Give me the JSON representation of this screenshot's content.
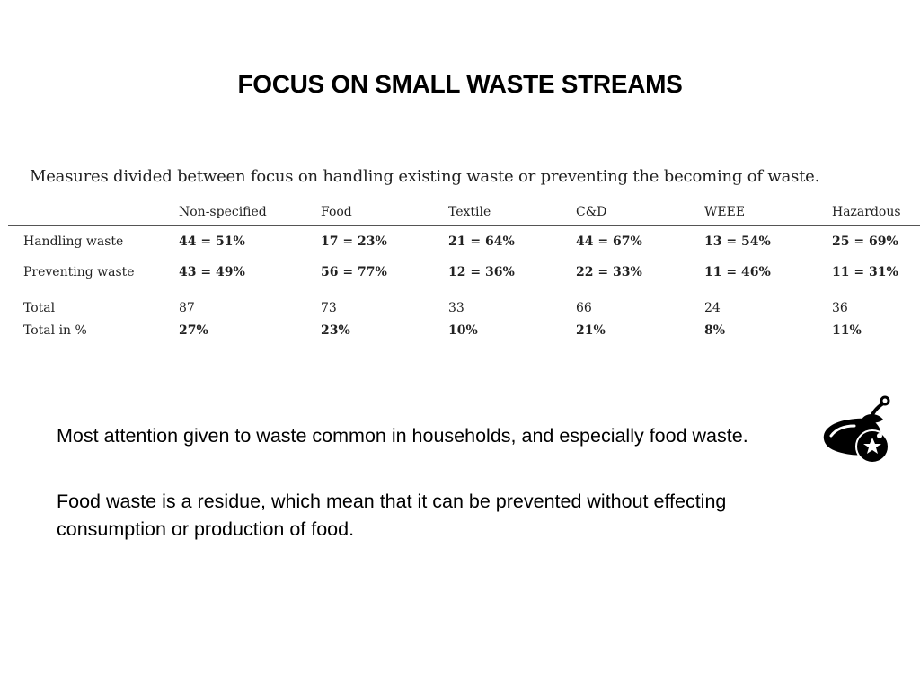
{
  "slide": {
    "title": "FOCUS ON SMALL WASTE STREAMS"
  },
  "table": {
    "caption": "Measures divided between focus on handling existing waste or preventing the becoming of waste.",
    "columns": [
      "",
      "Non-specified",
      "Food",
      "Textile",
      "C&D",
      "WEEE",
      "Hazardous"
    ],
    "rows": [
      {
        "label": "Handling waste",
        "cells": [
          "44 = 51%",
          "17 = 23%",
          "21 = 64%",
          "44 = 67%",
          "13 = 54%",
          "25 = 69%"
        ]
      },
      {
        "label": "Preventing waste",
        "cells": [
          "43 = 49%",
          "56 = 77%",
          "12 = 36%",
          "22 = 33%",
          "11 = 46%",
          "11 = 31%"
        ]
      },
      {
        "label": "Total",
        "cells": [
          "87",
          "73",
          "33",
          "66",
          "24",
          "36"
        ]
      },
      {
        "label": "Total in %",
        "cells": [
          "27%",
          "23%",
          "10%",
          "21%",
          "8%",
          "11%"
        ]
      }
    ]
  },
  "body": {
    "paragraph_1": "Most attention given to waste common in households, and especially food waste.",
    "paragraph_2": "Food waste is a residue, which mean that it can be prevented without effecting consumption or production of food."
  },
  "icons": {
    "food_icon": "food-waste-icon",
    "icon_color": "#000000"
  }
}
